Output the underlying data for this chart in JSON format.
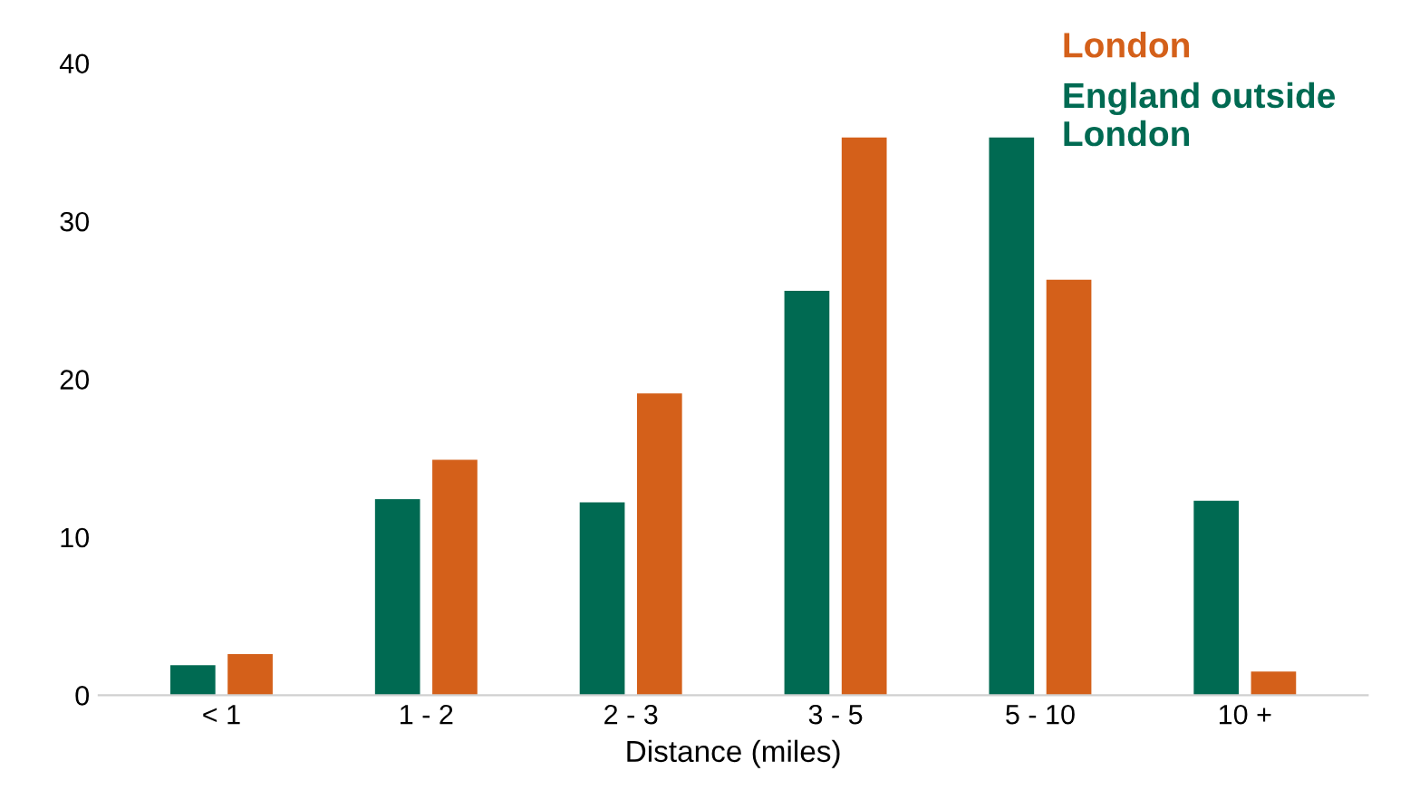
{
  "chart_data": {
    "type": "bar",
    "xlabel": "Distance (miles)",
    "categories": [
      "< 1",
      "1 - 2",
      "2 - 3",
      "3 - 5",
      "5 - 10",
      "10 +"
    ],
    "series": [
      {
        "name": "England outside\nLondon",
        "color": "#006a52",
        "values": [
          1.9,
          12.4,
          12.2,
          25.6,
          35.3,
          12.3
        ]
      },
      {
        "name": "London",
        "color": "#d4601a",
        "values": [
          2.6,
          14.9,
          19.1,
          35.3,
          26.3,
          1.5
        ]
      }
    ],
    "ylim": [
      0,
      40
    ],
    "yticks": [
      0,
      10,
      20,
      30,
      40
    ],
    "grid": false,
    "legend": "top right"
  }
}
